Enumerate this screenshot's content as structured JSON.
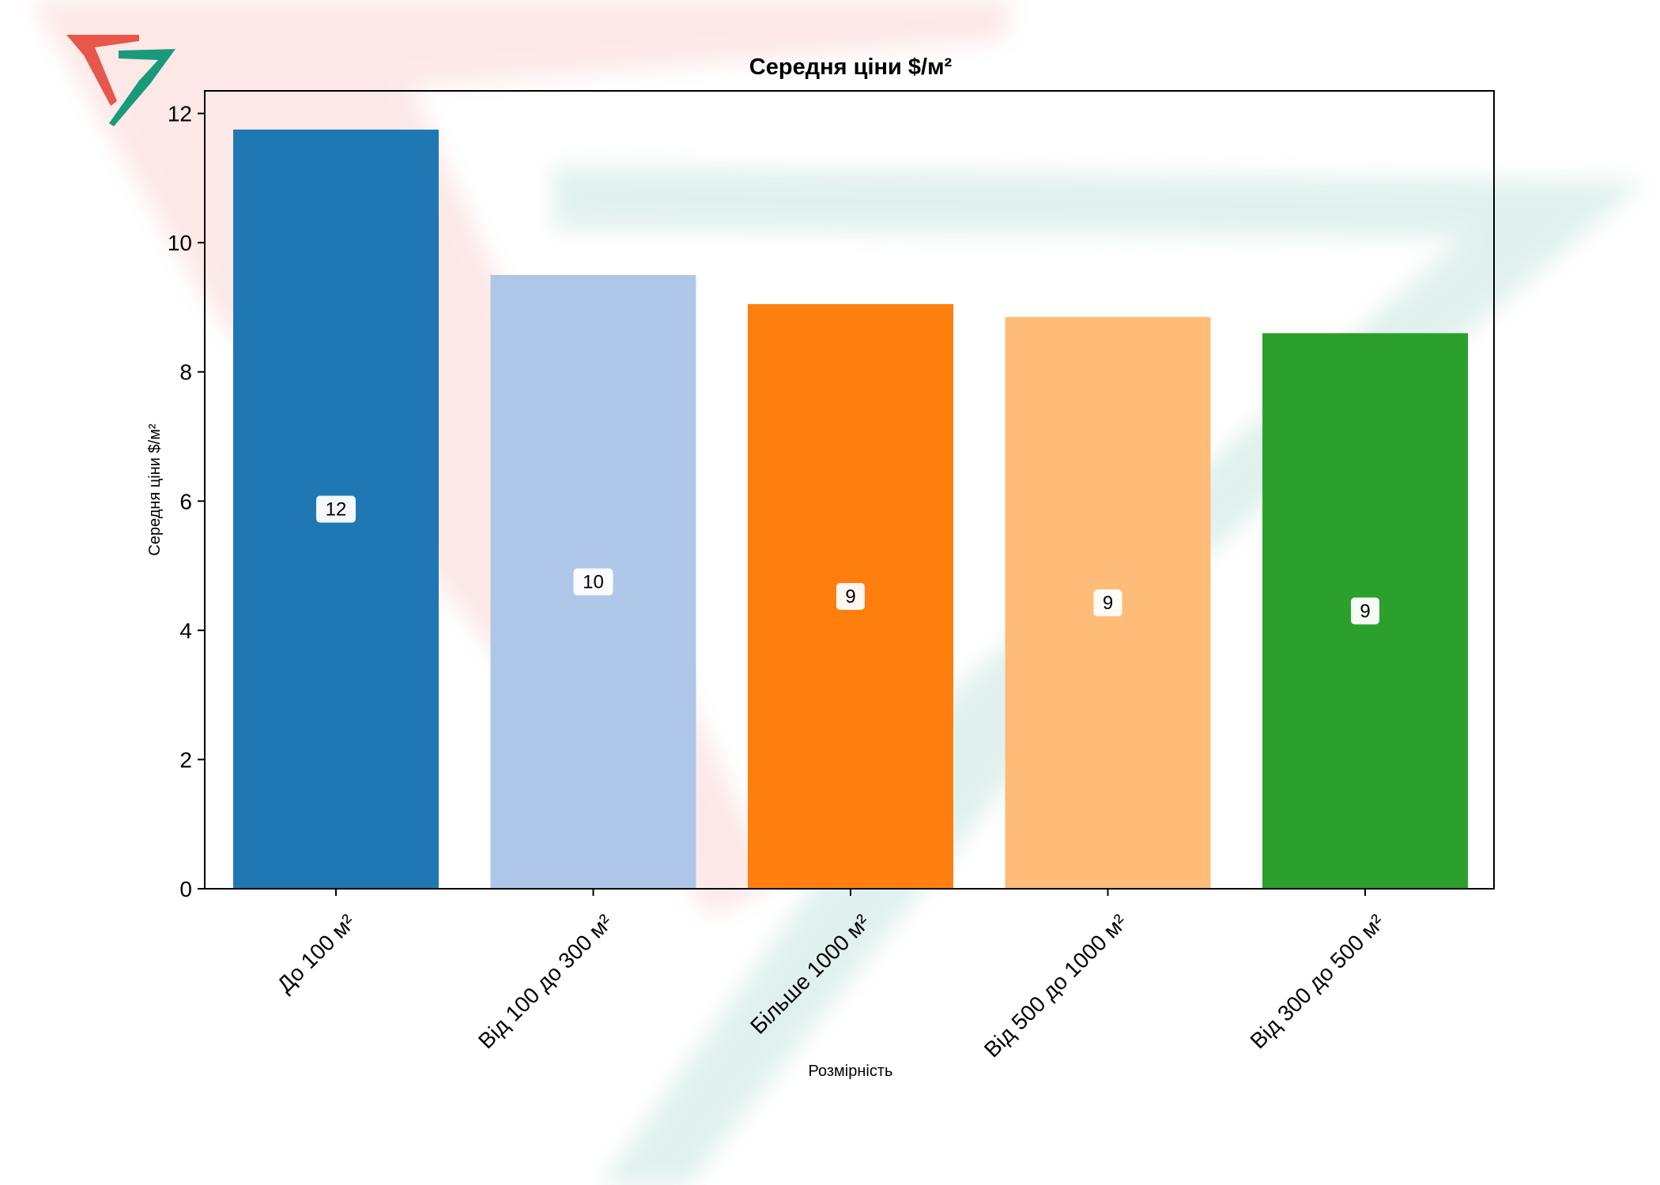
{
  "chart_data": {
    "type": "bar",
    "title": "Середня ціни $/м²",
    "xlabel": "Розмірність",
    "ylabel": "Середня ціни $/м²",
    "categories": [
      "До  100 м²",
      "Від 100 до 300 м²",
      "Більше 1000 м²",
      "Від 500 до 1000 м²",
      "Від 300 до 500 м²"
    ],
    "values": [
      11.75,
      9.5,
      9.05,
      8.85,
      8.6
    ],
    "data_labels": [
      "12",
      "10",
      "9",
      "9",
      "9"
    ],
    "colors": [
      "#1f77b4",
      "#aec7e8",
      "#ff7f0e",
      "#ffbb78",
      "#2ca02c"
    ],
    "ylim": [
      0,
      12.35
    ],
    "yticks": [
      0,
      2,
      4,
      6,
      8,
      10,
      12
    ],
    "grid": false,
    "legend": "none"
  },
  "watermark": {
    "logo_colors": [
      "#e8574c",
      "#1a9a7a"
    ]
  }
}
